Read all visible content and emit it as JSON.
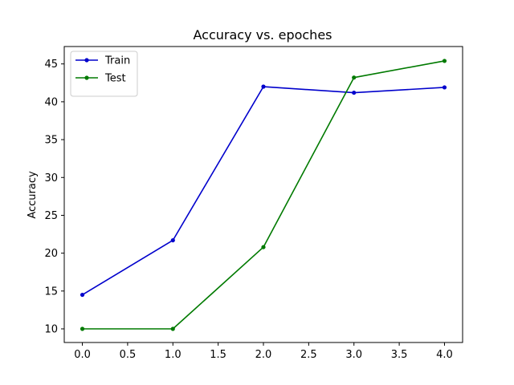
{
  "chart_data": {
    "type": "line",
    "title": "Accuracy vs. epoches",
    "xlabel": "",
    "ylabel": "Accuracy",
    "x": [
      0,
      1,
      2,
      3,
      4
    ],
    "xlim": [
      -0.2,
      4.2
    ],
    "ylim": [
      8.2,
      47.3
    ],
    "xticks": [
      0.0,
      0.5,
      1.0,
      1.5,
      2.0,
      2.5,
      3.0,
      3.5,
      4.0
    ],
    "xtick_labels": [
      "0.0",
      "0.5",
      "1.0",
      "1.5",
      "2.0",
      "2.5",
      "3.0",
      "3.5",
      "4.0"
    ],
    "yticks": [
      10,
      15,
      20,
      25,
      30,
      35,
      40,
      45
    ],
    "ytick_labels": [
      "10",
      "15",
      "20",
      "25",
      "30",
      "35",
      "40",
      "45"
    ],
    "grid": false,
    "legend_position": "top-left",
    "series": [
      {
        "name": "Train",
        "color": "#0000cc",
        "marker": "circle",
        "values": [
          14.5,
          21.7,
          42.0,
          41.2,
          41.9
        ]
      },
      {
        "name": "Test",
        "color": "#007a00",
        "marker": "circle",
        "values": [
          10.0,
          10.0,
          20.8,
          43.2,
          45.4
        ]
      }
    ]
  }
}
